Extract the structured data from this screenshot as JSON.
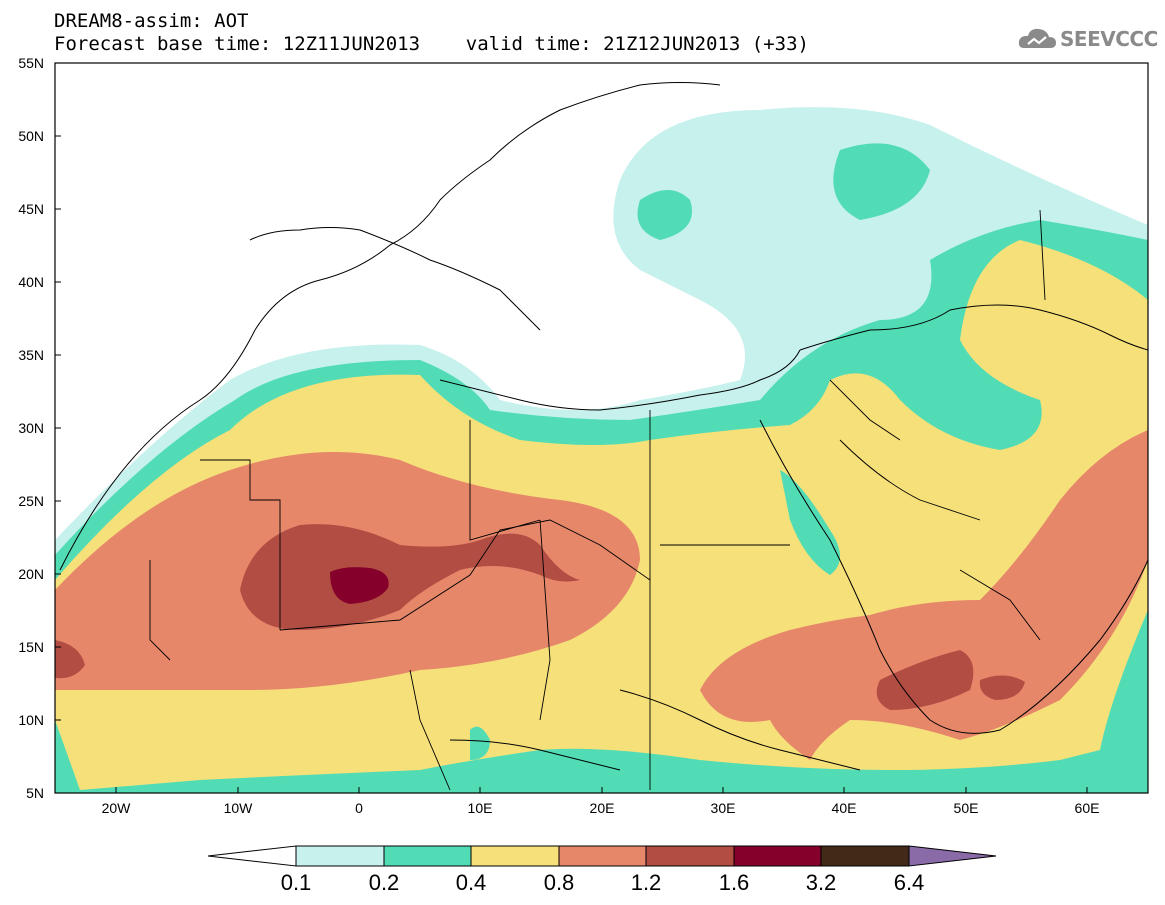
{
  "header": {
    "line1": "DREAM8-assim: AOT",
    "line2": "Forecast base time: 12Z11JUN2013    valid time: 21Z12JUN2013 (+33)",
    "logo_text": "SEEVCCC"
  },
  "axes": {
    "lat_labels": [
      "55N",
      "50N",
      "45N",
      "40N",
      "35N",
      "30N",
      "25N",
      "20N",
      "15N",
      "10N",
      "5N"
    ],
    "lon_labels": [
      "20W",
      "10W",
      "0",
      "10E",
      "20E",
      "30E",
      "40E",
      "50E",
      "60E"
    ]
  },
  "colorbar": {
    "labels": [
      "0.1",
      "0.2",
      "0.4",
      "0.8",
      "1.2",
      "1.6",
      "3.2",
      "6.4"
    ],
    "colors": [
      "#c6f1ec",
      "#52dcb5",
      "#f6e07a",
      "#e6876a",
      "#b14d43",
      "#85002a",
      "#432918",
      "#8b6aa8"
    ]
  },
  "map_colors": {
    "aot_0_1_0_2": "#c6f1ec",
    "aot_0_2_0_4": "#52dcb5",
    "aot_0_4_0_8": "#f6e07a",
    "aot_0_8_1_2": "#e6876a",
    "aot_1_2_1_6": "#b14d43",
    "aot_1_6_3_2": "#85002a"
  }
}
